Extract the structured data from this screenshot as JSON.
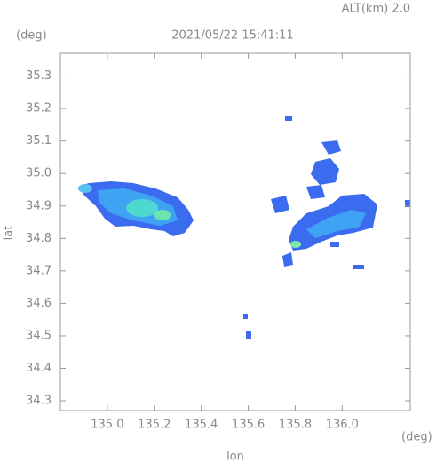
{
  "chart_data": {
    "type": "map",
    "title": "2021/05/22 15:41:11",
    "subtitle": "ALT(km) 2.0",
    "y_unit": "(deg)",
    "x_unit": "(deg)",
    "x_label": "lon",
    "y_label": "lat",
    "xlim": [
      134.8,
      136.29
    ],
    "xticks": [
      {
        "value": 135,
        "label": "135.0"
      },
      135.2,
      135.4,
      135.6,
      135.8,
      {
        "value": 136,
        "label": "136.0"
      }
    ],
    "ylim": [
      34.27,
      35.37
    ],
    "yticks": [
      34.3,
      34.4,
      34.5,
      34.6,
      34.7,
      34.8,
      34.9,
      {
        "value": 35,
        "label": "35.0"
      },
      35.1,
      35.2,
      35.3
    ]
  }
}
